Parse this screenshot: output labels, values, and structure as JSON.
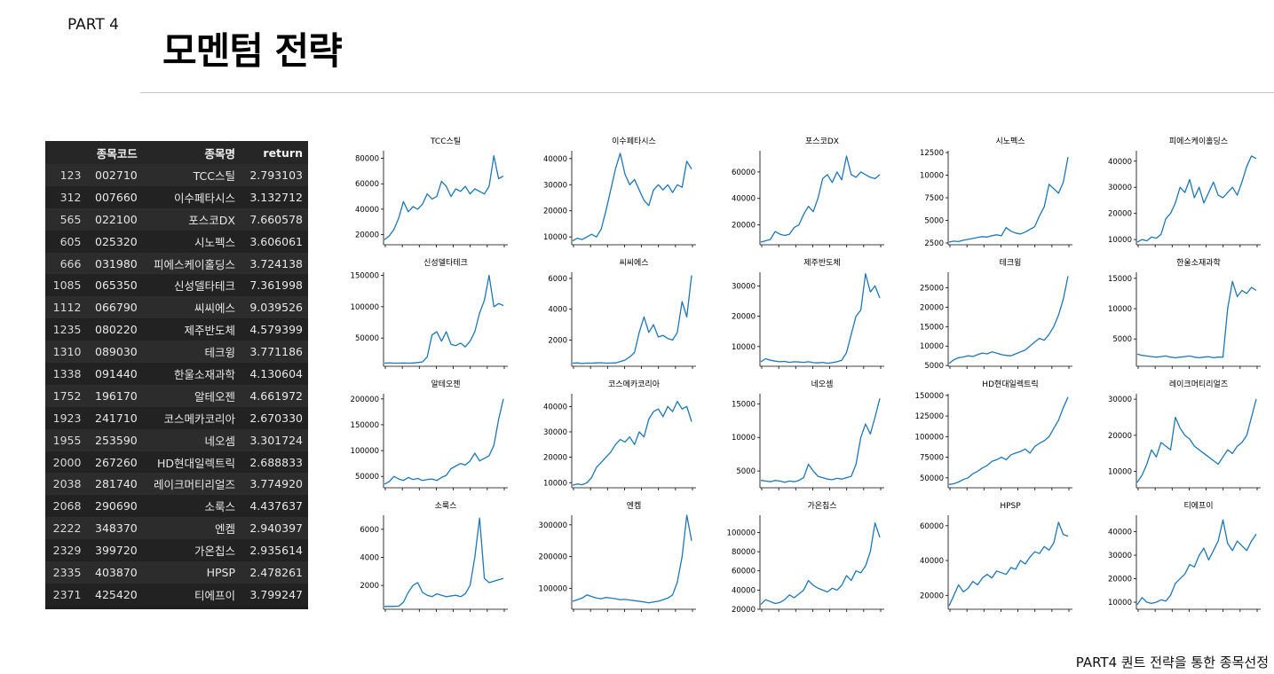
{
  "header": {
    "part_label": "PART 4",
    "title": "모멘텀 전략"
  },
  "footer": {
    "caption": "PART4 퀀트 전략을 통한 종목선정"
  },
  "colors": {
    "line": "#1f77b4",
    "table_bg": "#1e1e1e"
  },
  "table": {
    "headers": [
      "",
      "종목코드",
      "종목명",
      "return"
    ],
    "rows": [
      {
        "idx": "123",
        "code": "002710",
        "name": "TCC스틸",
        "ret": "2.793103"
      },
      {
        "idx": "312",
        "code": "007660",
        "name": "이수페타시스",
        "ret": "3.132712"
      },
      {
        "idx": "565",
        "code": "022100",
        "name": "포스코DX",
        "ret": "7.660578"
      },
      {
        "idx": "605",
        "code": "025320",
        "name": "시노펙스",
        "ret": "3.606061"
      },
      {
        "idx": "666",
        "code": "031980",
        "name": "피에스케이홀딩스",
        "ret": "3.724138"
      },
      {
        "idx": "1085",
        "code": "065350",
        "name": "신성델타테크",
        "ret": "7.361998"
      },
      {
        "idx": "1112",
        "code": "066790",
        "name": "씨씨에스",
        "ret": "9.039526"
      },
      {
        "idx": "1235",
        "code": "080220",
        "name": "제주반도체",
        "ret": "4.579399"
      },
      {
        "idx": "1310",
        "code": "089030",
        "name": "테크윙",
        "ret": "3.771186"
      },
      {
        "idx": "1338",
        "code": "091440",
        "name": "한울소재과학",
        "ret": "4.130604"
      },
      {
        "idx": "1752",
        "code": "196170",
        "name": "알테오젠",
        "ret": "4.661972"
      },
      {
        "idx": "1923",
        "code": "241710",
        "name": "코스메카코리아",
        "ret": "2.670330"
      },
      {
        "idx": "1955",
        "code": "253590",
        "name": "네오셈",
        "ret": "3.301724"
      },
      {
        "idx": "2000",
        "code": "267260",
        "name": "HD현대일렉트릭",
        "ret": "2.688833"
      },
      {
        "idx": "2038",
        "code": "281740",
        "name": "레이크머티리얼즈",
        "ret": "3.774920"
      },
      {
        "idx": "2068",
        "code": "290690",
        "name": "소룩스",
        "ret": "4.437637"
      },
      {
        "idx": "2222",
        "code": "348370",
        "name": "엔켐",
        "ret": "2.940397"
      },
      {
        "idx": "2329",
        "code": "399720",
        "name": "가온칩스",
        "ret": "2.935614"
      },
      {
        "idx": "2335",
        "code": "403870",
        "name": "HPSP",
        "ret": "2.478261"
      },
      {
        "idx": "2371",
        "code": "425420",
        "name": "티에프이",
        "ret": "3.799247"
      }
    ]
  },
  "chart_data": [
    {
      "type": "line",
      "title": "TCC스틸",
      "ylim": [
        12000,
        86000
      ],
      "yticks": [
        "20000",
        "40000",
        "60000",
        "80000"
      ],
      "values": [
        16000,
        19000,
        24000,
        33000,
        46000,
        38000,
        42000,
        40000,
        44000,
        52000,
        48000,
        50000,
        62000,
        58000,
        50000,
        56000,
        54000,
        58000,
        52000,
        56000,
        54000,
        52000,
        58000,
        82000,
        64000,
        66000
      ]
    },
    {
      "type": "line",
      "title": "이수페타시스",
      "ylim": [
        7000,
        43000
      ],
      "yticks": [
        "10000",
        "20000",
        "30000",
        "40000"
      ],
      "values": [
        8500,
        9500,
        9000,
        10000,
        11000,
        10000,
        13000,
        20000,
        28000,
        36000,
        42000,
        34000,
        30000,
        32000,
        28000,
        24000,
        22000,
        28000,
        30000,
        28000,
        30000,
        27000,
        30000,
        29000,
        39000,
        36000
      ]
    },
    {
      "type": "line",
      "title": "포스코DX",
      "ylim": [
        5000,
        76000
      ],
      "yticks": [
        "20000",
        "40000",
        "60000"
      ],
      "values": [
        7000,
        8000,
        9000,
        15000,
        13000,
        12000,
        13000,
        18000,
        20000,
        28000,
        34000,
        30000,
        40000,
        55000,
        58000,
        52000,
        60000,
        54000,
        72000,
        58000,
        56000,
        60000,
        58000,
        56000,
        55000,
        58000
      ]
    },
    {
      "type": "line",
      "title": "시노펙스",
      "ylim": [
        2300,
        12700
      ],
      "yticks": [
        "2500",
        "5000",
        "7500",
        "10000",
        "12500"
      ],
      "values": [
        2600,
        2700,
        2650,
        2800,
        2900,
        3000,
        3100,
        3200,
        3150,
        3300,
        3400,
        3300,
        4200,
        3800,
        3600,
        3500,
        3700,
        4000,
        4300,
        5500,
        6500,
        9000,
        8500,
        8000,
        9200,
        12000
      ]
    },
    {
      "type": "line",
      "title": "피에스케이홀딩스",
      "ylim": [
        8000,
        44000
      ],
      "yticks": [
        "10000",
        "20000",
        "30000",
        "40000"
      ],
      "values": [
        9000,
        10000,
        9500,
        11000,
        10500,
        12000,
        18000,
        20000,
        24000,
        30000,
        28000,
        33000,
        26000,
        30000,
        24000,
        28000,
        32000,
        27000,
        26000,
        28000,
        30000,
        27000,
        32000,
        38000,
        42000,
        41000
      ]
    },
    {
      "type": "line",
      "title": "신성델타테크",
      "ylim": [
        5000,
        155000
      ],
      "yticks": [
        "50000",
        "100000",
        "150000"
      ],
      "values": [
        10000,
        10500,
        10000,
        10000,
        10200,
        10000,
        10300,
        11000,
        12000,
        20000,
        55000,
        60000,
        45000,
        60000,
        40000,
        38000,
        42000,
        36000,
        45000,
        60000,
        90000,
        110000,
        150000,
        100000,
        105000,
        102000
      ]
    },
    {
      "type": "line",
      "title": "씨씨에스",
      "ylim": [
        300,
        6400
      ],
      "yticks": [
        "2000",
        "4000",
        "6000"
      ],
      "values": [
        500,
        520,
        480,
        510,
        500,
        520,
        530,
        500,
        510,
        520,
        600,
        700,
        900,
        1200,
        2500,
        3500,
        2500,
        3000,
        2200,
        2300,
        2100,
        2000,
        2500,
        4500,
        3500,
        6200
      ]
    },
    {
      "type": "line",
      "title": "제주반도체",
      "ylim": [
        3500,
        34500
      ],
      "yticks": [
        "10000",
        "20000",
        "30000"
      ],
      "values": [
        5000,
        6000,
        5500,
        5200,
        5000,
        5100,
        4800,
        5000,
        4900,
        4800,
        5000,
        4700,
        4600,
        4800,
        4500,
        4700,
        5000,
        5500,
        8000,
        14000,
        20000,
        22000,
        34000,
        28000,
        30000,
        26000
      ]
    },
    {
      "type": "line",
      "title": "테크윙",
      "ylim": [
        4800,
        29000
      ],
      "yticks": [
        "5000",
        "10000",
        "15000",
        "20000",
        "25000"
      ],
      "values": [
        5500,
        6500,
        7000,
        7200,
        7500,
        7300,
        7800,
        8200,
        8000,
        8500,
        8200,
        7800,
        7600,
        7500,
        8000,
        8500,
        9000,
        10000,
        11000,
        12000,
        11500,
        13000,
        15000,
        18000,
        22000,
        28000
      ]
    },
    {
      "type": "line",
      "title": "한울소재과학",
      "ylim": [
        500,
        16000
      ],
      "yticks": [
        "5000",
        "10000",
        "15000"
      ],
      "values": [
        2500,
        2300,
        2200,
        2100,
        2000,
        2100,
        2200,
        2000,
        1900,
        2000,
        2100,
        2200,
        2000,
        1900,
        2000,
        2100,
        1900,
        2000,
        2000,
        10000,
        14500,
        12000,
        13000,
        12500,
        13500,
        13000
      ]
    },
    {
      "type": "line",
      "title": "알테오젠",
      "ylim": [
        28000,
        210000
      ],
      "yticks": [
        "50000",
        "100000",
        "150000",
        "200000"
      ],
      "values": [
        35000,
        40000,
        50000,
        45000,
        42000,
        48000,
        44000,
        46000,
        42000,
        44000,
        45000,
        42000,
        48000,
        52000,
        65000,
        70000,
        75000,
        72000,
        80000,
        95000,
        80000,
        85000,
        90000,
        110000,
        160000,
        200000
      ]
    },
    {
      "type": "line",
      "title": "코스메카코리아",
      "ylim": [
        8000,
        45000
      ],
      "yticks": [
        "10000",
        "20000",
        "30000",
        "40000"
      ],
      "values": [
        9000,
        9500,
        9200,
        10000,
        12000,
        16000,
        18000,
        20000,
        22000,
        25000,
        27000,
        26000,
        28000,
        25000,
        30000,
        28000,
        35000,
        38000,
        39000,
        36000,
        40000,
        38000,
        42000,
        39000,
        40000,
        34000
      ]
    },
    {
      "type": "line",
      "title": "네오셈",
      "ylim": [
        2500,
        16500
      ],
      "yticks": [
        "5000",
        "10000",
        "15000"
      ],
      "values": [
        3600,
        3500,
        3400,
        3600,
        3500,
        3300,
        3500,
        3400,
        3600,
        4000,
        6000,
        5000,
        4200,
        4000,
        3800,
        3700,
        3900,
        3800,
        4000,
        4200,
        6000,
        10000,
        12000,
        10500,
        13000,
        15800
      ]
    },
    {
      "type": "line",
      "title": "HD현대일렉트릭",
      "ylim": [
        38000,
        152000
      ],
      "yticks": [
        "50000",
        "75000",
        "100000",
        "125000",
        "150000"
      ],
      "values": [
        42000,
        43000,
        45000,
        48000,
        50000,
        55000,
        58000,
        62000,
        65000,
        70000,
        72000,
        75000,
        72000,
        78000,
        80000,
        82000,
        85000,
        80000,
        88000,
        92000,
        95000,
        100000,
        110000,
        120000,
        135000,
        148000
      ]
    },
    {
      "type": "line",
      "title": "레이크머티리얼즈",
      "ylim": [
        5500,
        31500
      ],
      "yticks": [
        "10000",
        "20000",
        "30000"
      ],
      "values": [
        7000,
        9000,
        12000,
        16000,
        14000,
        18000,
        17000,
        16000,
        25000,
        22000,
        20000,
        19000,
        17000,
        16000,
        15000,
        14000,
        13000,
        12000,
        14000,
        16000,
        15000,
        17000,
        18000,
        20000,
        25000,
        30000
      ]
    },
    {
      "type": "line",
      "title": "소룩스",
      "ylim": [
        300,
        7000
      ],
      "yticks": [
        "2000",
        "4000",
        "6000"
      ],
      "values": [
        500,
        500,
        510,
        520,
        800,
        1500,
        2000,
        2200,
        1500,
        1300,
        1200,
        1400,
        1300,
        1200,
        1250,
        1300,
        1200,
        1400,
        2000,
        4000,
        6800,
        2500,
        2200,
        2300,
        2400,
        2500
      ]
    },
    {
      "type": "line",
      "title": "엔켐",
      "ylim": [
        35000,
        330000
      ],
      "yticks": [
        "100000",
        "200000",
        "300000"
      ],
      "values": [
        60000,
        65000,
        70000,
        80000,
        75000,
        70000,
        68000,
        72000,
        70000,
        68000,
        65000,
        66000,
        64000,
        62000,
        60000,
        58000,
        55000,
        58000,
        60000,
        65000,
        70000,
        80000,
        120000,
        200000,
        330000,
        250000
      ]
    },
    {
      "type": "line",
      "title": "가온칩스",
      "ylim": [
        20000,
        118000
      ],
      "yticks": [
        "20000",
        "40000",
        "60000",
        "80000",
        "100000"
      ],
      "values": [
        25000,
        30000,
        28000,
        26000,
        27000,
        30000,
        35000,
        32000,
        36000,
        40000,
        50000,
        45000,
        42000,
        40000,
        38000,
        42000,
        40000,
        45000,
        55000,
        50000,
        60000,
        58000,
        65000,
        80000,
        110000,
        95000
      ]
    },
    {
      "type": "line",
      "title": "HPSP",
      "ylim": [
        12000,
        66000
      ],
      "yticks": [
        "20000",
        "40000",
        "60000"
      ],
      "values": [
        14000,
        20000,
        26000,
        22000,
        24000,
        28000,
        26000,
        30000,
        32000,
        30000,
        34000,
        33000,
        32000,
        36000,
        35000,
        40000,
        38000,
        42000,
        45000,
        44000,
        48000,
        46000,
        50000,
        62000,
        55000,
        54000
      ]
    },
    {
      "type": "line",
      "title": "티에프이",
      "ylim": [
        7000,
        47000
      ],
      "yticks": [
        "10000",
        "20000",
        "30000",
        "40000"
      ],
      "values": [
        9000,
        12000,
        10000,
        9500,
        10000,
        11000,
        10500,
        13000,
        18000,
        20000,
        22000,
        26000,
        25000,
        30000,
        33000,
        28000,
        32000,
        36000,
        45000,
        35000,
        32000,
        36000,
        34000,
        32000,
        36000,
        39000
      ]
    }
  ]
}
